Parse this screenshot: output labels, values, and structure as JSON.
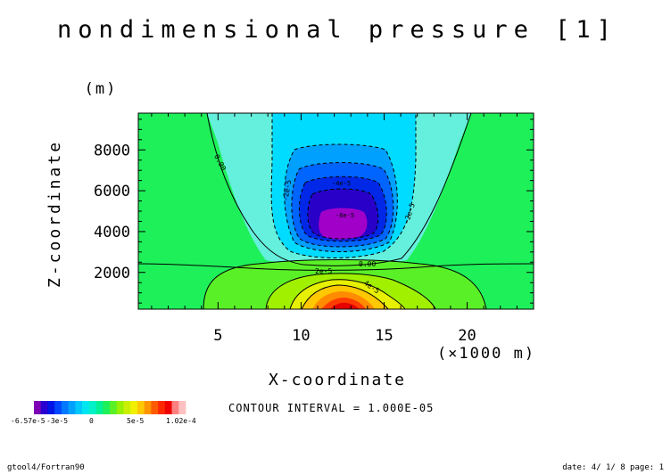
{
  "chart_data": {
    "type": "heatmap",
    "title": "nondimensional pressure [1]",
    "xlabel": "X-coordinate",
    "xunit": "(×1000 m)",
    "ylabel": "Z-coordinate",
    "yunit": "(m)",
    "xlim": [
      0.2,
      24
    ],
    "ylim": [
      200,
      9800
    ],
    "x_ticks": [
      5,
      10,
      15,
      20
    ],
    "y_ticks": [
      2000,
      4000,
      6000,
      8000
    ],
    "contour_interval_text": "CONTOUR INTERVAL = 1.000E-05",
    "contour_labels": [
      "0.00",
      "0.00",
      "-2e-5",
      "-4e-5",
      "-6e-5",
      "-2e-5",
      "2e-5",
      "4e-5"
    ],
    "colorbar": {
      "min_label": "-6.57e-5",
      "mid_label_neg": "-3e-5",
      "zero_label": "0",
      "mid_label_pos": "5e-5",
      "max_label": "1.02e-4",
      "colors": [
        "#7d00b4",
        "#2800d2",
        "#0014e6",
        "#0046ff",
        "#0078ff",
        "#00a0ff",
        "#00c8ff",
        "#00e6f0",
        "#00f0c8",
        "#00f096",
        "#1ef05a",
        "#5af028",
        "#96f000",
        "#c8f000",
        "#f0f000",
        "#ffc800",
        "#ff9600",
        "#ff5a00",
        "#ff2800",
        "#f00000",
        "#ff8080",
        "#ffc0c0"
      ]
    }
  },
  "footer": {
    "left": "gtool4/Fortran90",
    "right": "date: 4/ 1/ 8 page: 1"
  }
}
